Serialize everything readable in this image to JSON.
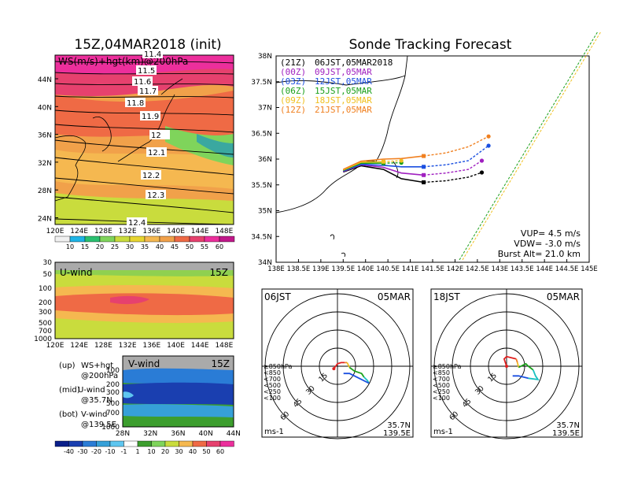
{
  "left": {
    "title": "15Z,04MAR2018 (init)",
    "map_label": "WS(m/s)+hgt(km)@200hPa",
    "contour_labels": [
      "11.4",
      "11.5",
      "11.6",
      "11.7",
      "11.8",
      "11.9",
      "12",
      "12.1",
      "12.2",
      "12.3",
      "12.4"
    ],
    "lat_ticks": [
      "44N",
      "40N",
      "36N",
      "32N",
      "28N",
      "24N"
    ],
    "lon_ticks": [
      "120E",
      "124E",
      "128E",
      "132E",
      "136E",
      "140E",
      "144E",
      "148E"
    ],
    "ws_levels": [
      "10",
      "15",
      "20",
      "25",
      "30",
      "35",
      "40",
      "45",
      "50",
      "55",
      "60"
    ],
    "u_panel": {
      "label": "U-wind",
      "time": "15Z",
      "p_ticks": [
        "30",
        "50",
        "100",
        "200",
        "300",
        "500",
        "700",
        "1000"
      ],
      "lon_ticks": [
        "120E",
        "124E",
        "128E",
        "132E",
        "136E",
        "140E",
        "144E",
        "148E"
      ]
    },
    "v_panel": {
      "label": "V-wind",
      "time": "15Z",
      "p_ticks": [
        "100",
        "200",
        "300",
        "500",
        "700",
        "1000"
      ],
      "lat_ticks": [
        "28N",
        "32N",
        "36N",
        "40N",
        "44N"
      ]
    },
    "notes": [
      {
        "tag": "(up)",
        "line1": "WS+hgt",
        "line2": "@200hPa"
      },
      {
        "tag": "(mid)",
        "line1": "U-wind",
        "line2": "@35.7N"
      },
      {
        "tag": "(bot)",
        "line1": "V-wind",
        "line2": "@139.5E"
      }
    ],
    "uv_levels": [
      "-40",
      "-30",
      "-20",
      "-10",
      "-1",
      "1",
      "10",
      "20",
      "30",
      "40",
      "50",
      "60"
    ]
  },
  "track": {
    "title": "Sonde Tracking Forecast",
    "legend": [
      {
        "code": "(21Z)",
        "time": "06JST,05MAR2018",
        "color": "#000000"
      },
      {
        "code": "(00Z)",
        "time": "09JST,05MAR",
        "color": "#a020c0"
      },
      {
        "code": "(03Z)",
        "time": "12JST,05MAR",
        "color": "#1a4fe0"
      },
      {
        "code": "(06Z)",
        "time": "15JST,05MAR",
        "color": "#1aa01a"
      },
      {
        "code": "(09Z)",
        "time": "18JST,05MAR",
        "color": "#f0c020"
      },
      {
        "code": "(12Z)",
        "time": "21JST,05MAR",
        "color": "#f08020"
      }
    ],
    "lat_ticks": [
      "38N",
      "37.5N",
      "37N",
      "36.5N",
      "36N",
      "35.5N",
      "35N",
      "34.5N",
      "34N"
    ],
    "lon_ticks": [
      "138E",
      "138.5E",
      "139E",
      "139.5E",
      "140E",
      "140.5E",
      "141E",
      "141.5E",
      "142E",
      "142.5E",
      "143E",
      "143.5E",
      "144E",
      "144.5E",
      "145E"
    ],
    "vup": "VUP= 4.5 m/s",
    "vdw": "VDW= -3.0 m/s",
    "burst": "Burst Alt= 21.0 km"
  },
  "chart_data": [
    {
      "type": "line",
      "title": "Sonde Tracking Forecast",
      "xlim": [
        138,
        145
      ],
      "ylim": [
        34,
        38
      ],
      "series": [
        {
          "name": "(21Z) 06JST,05MAR2018",
          "color": "#000000",
          "x": [
            139.5,
            139.9,
            140.4,
            140.8,
            141.3,
            141.8,
            142.3,
            142.6
          ],
          "y": [
            35.75,
            35.87,
            35.8,
            35.62,
            35.55,
            35.58,
            35.65,
            35.74
          ]
        },
        {
          "name": "(00Z) 09JST,05MAR",
          "color": "#a020c0",
          "x": [
            139.5,
            139.9,
            140.4,
            140.8,
            141.3,
            141.8,
            142.3,
            142.6
          ],
          "y": [
            35.76,
            35.89,
            35.84,
            35.73,
            35.69,
            35.73,
            35.8,
            35.97
          ]
        },
        {
          "name": "(03Z) 12JST,05MAR",
          "color": "#1a4fe0",
          "x": [
            139.5,
            139.9,
            140.4,
            140.8,
            141.3,
            141.8,
            142.3,
            142.75
          ],
          "y": [
            35.77,
            35.9,
            35.88,
            35.85,
            35.85,
            35.89,
            35.97,
            36.26
          ]
        },
        {
          "name": "(06Z) 15JST,05MAR",
          "color": "#1aa01a",
          "x": [
            139.5,
            139.9,
            140.4,
            140.8
          ],
          "y": [
            35.78,
            35.92,
            35.92,
            35.93
          ]
        },
        {
          "name": "(09Z) 18JST,05MAR",
          "color": "#f0c020",
          "x": [
            139.5,
            139.9,
            140.4,
            140.8
          ],
          "y": [
            35.79,
            35.94,
            35.95,
            35.97
          ]
        },
        {
          "name": "(12Z) 21JST,05MAR",
          "color": "#f08020",
          "x": [
            139.5,
            139.9,
            140.4,
            140.8,
            141.3,
            141.8,
            142.3,
            142.75
          ],
          "y": [
            35.8,
            35.96,
            36.0,
            36.01,
            36.06,
            36.12,
            36.24,
            36.44
          ]
        }
      ]
    },
    {
      "type": "line",
      "title": "06JST 05MAR hodograph",
      "rings": [
        "15",
        "30",
        "45",
        "60"
      ],
      "units": "ms-1",
      "location": [
        "35.7N",
        "139.5E"
      ],
      "pressure_legend": [
        "≥850hPa",
        "<850",
        "<700",
        "<500",
        "<250",
        "<100"
      ],
      "series": [
        {
          "name": "≥850hPa",
          "color": "#e02020",
          "x": [
            -3,
            0,
            3,
            6
          ],
          "y": [
            -2,
            2,
            3,
            3
          ]
        },
        {
          "name": "<850",
          "color": "#f08020",
          "x": [
            6,
            8
          ],
          "y": [
            3,
            3
          ]
        },
        {
          "name": "<700",
          "color": "#f0c020",
          "x": [
            8,
            10
          ],
          "y": [
            3,
            -1
          ]
        },
        {
          "name": "<500",
          "color": "#1aa01a",
          "x": [
            10,
            14,
            20,
            22
          ],
          "y": [
            -1,
            -4,
            -6,
            -9
          ]
        },
        {
          "name": "<250",
          "color": "#18c0c0",
          "x": [
            22,
            25,
            26
          ],
          "y": [
            -9,
            -12,
            -14
          ]
        },
        {
          "name": "<100",
          "color": "#1a4fe0",
          "x": [
            26,
            18,
            10,
            5
          ],
          "y": [
            -14,
            -10,
            -6,
            -6
          ]
        }
      ]
    },
    {
      "type": "line",
      "title": "18JST 05MAR hodograph",
      "rings": [
        "15",
        "30",
        "45",
        "60"
      ],
      "units": "ms-1",
      "location": [
        "35.7N",
        "139.5E"
      ],
      "pressure_legend": [
        "≥850hPa",
        "<850",
        "<700",
        "<500",
        "<250",
        "<100"
      ],
      "series": [
        {
          "name": "≥850hPa",
          "color": "#e02020",
          "x": [
            0,
            -2,
            0,
            4,
            8
          ],
          "y": [
            0,
            6,
            8,
            7,
            6
          ]
        },
        {
          "name": "<850",
          "color": "#f08020",
          "x": [
            8,
            9
          ],
          "y": [
            6,
            3
          ]
        },
        {
          "name": "<700",
          "color": "#f0c020",
          "x": [
            9,
            10
          ],
          "y": [
            3,
            -1
          ]
        },
        {
          "name": "<500",
          "color": "#1aa01a",
          "x": [
            10,
            16,
            18,
            22
          ],
          "y": [
            -1,
            2,
            0,
            -3
          ]
        },
        {
          "name": "<250",
          "color": "#18c0c0",
          "x": [
            22,
            24,
            26,
            18
          ],
          "y": [
            -3,
            -8,
            -11,
            -10
          ]
        },
        {
          "name": "<100",
          "color": "#1a4fe0",
          "x": [
            18,
            10,
            5
          ],
          "y": [
            -10,
            -8,
            -8
          ]
        }
      ]
    }
  ],
  "hodo1": {
    "time": "06JST",
    "date": "05MAR",
    "lat": "35.7N",
    "lon": "139.5E",
    "units": "ms-1"
  },
  "hodo2": {
    "time": "18JST",
    "date": "05MAR",
    "lat": "35.7N",
    "lon": "139.5E",
    "units": "ms-1"
  }
}
